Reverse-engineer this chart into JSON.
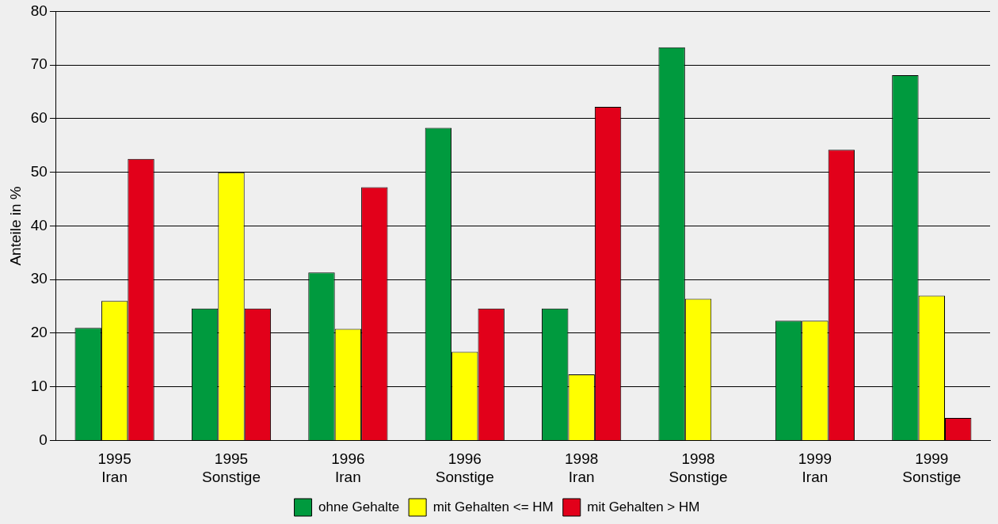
{
  "chart_data": {
    "type": "bar",
    "ylabel": "Anteile in %",
    "categories": [
      "1995\nIran",
      "1995\nSonstige",
      "1996\nIran",
      "1996\nSonstige",
      "1998\nIran",
      "1998\nSonstige",
      "1999\nIran",
      "1999\nSonstige"
    ],
    "series": [
      {
        "name": "ohne Gehalte",
        "color": "#009a3e",
        "values": [
          21,
          24.6,
          31.3,
          58.3,
          24.6,
          73.3,
          22.3,
          68.1
        ]
      },
      {
        "name": "mit Gehalten <= HM",
        "color": "#ffff00",
        "values": [
          26,
          50,
          20.8,
          16.5,
          12.3,
          26.4,
          22.3,
          27
        ]
      },
      {
        "name": "mit Gehalten > HM",
        "color": "#e2001a",
        "values": [
          52.5,
          24.6,
          47.2,
          24.6,
          62.2,
          0,
          54.2,
          4.2
        ]
      }
    ],
    "ylim": [
      0,
      80
    ],
    "yticks": [
      0,
      10,
      20,
      30,
      40,
      50,
      60,
      70,
      80
    ],
    "grid": "y",
    "legend": "bottom"
  }
}
